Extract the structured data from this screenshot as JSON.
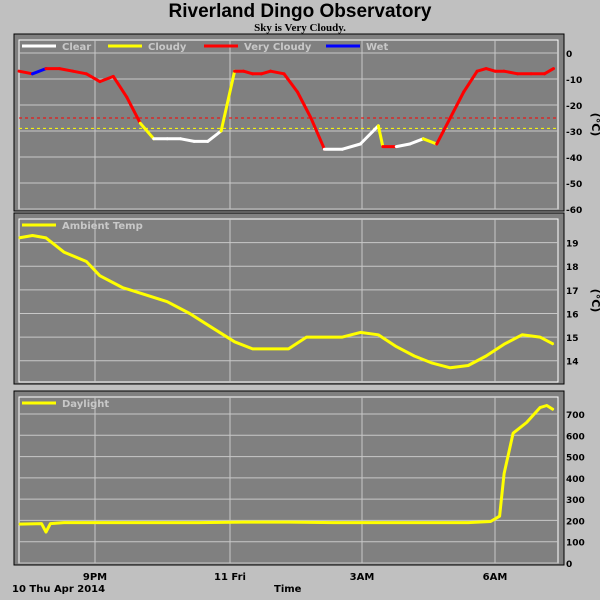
{
  "title": "Riverland Dingo Observatory",
  "subtitle": "Sky is Very Cloudy.",
  "footer": {
    "date_label": "10 Thu Apr 2014",
    "time_label": "Time"
  },
  "x_axis": {
    "ticks": [
      "9PM",
      "11 Fri",
      "3AM",
      "6AM"
    ]
  },
  "colors": {
    "panel_bg": "#808080",
    "frame": "#ffffff",
    "clear": "#ffffff",
    "cloudy": "#ffff00",
    "very_cloudy": "#ff0000",
    "wet": "#0000ff"
  },
  "chart_data": [
    {
      "type": "line",
      "ylabel": "(°C)",
      "ylim": [
        -60,
        0
      ],
      "yticks": [
        "0",
        "-10",
        "-20",
        "-30",
        "-40",
        "-50",
        "-60"
      ],
      "grid": true,
      "legend": [
        "Clear",
        "Cloudy",
        "Very Cloudy",
        "Wet"
      ],
      "thresholds": [
        {
          "value": -25,
          "color": "#ff0000"
        },
        {
          "value": -29,
          "color": "#ffff00"
        }
      ],
      "x_hours": [
        0,
        0.3,
        0.6,
        0.9,
        1.2,
        1.5,
        1.8,
        2.1,
        2.4,
        2.7,
        3.0,
        3.3,
        3.6,
        3.9,
        4.2,
        4.5,
        4.8,
        5.0,
        5.2,
        5.4,
        5.6,
        5.9,
        6.2,
        6.5,
        6.8,
        7.2,
        7.6,
        8.0,
        8.1,
        8.4,
        8.7,
        9.0,
        9.3,
        9.6,
        9.9,
        10.2,
        10.4,
        10.6,
        10.8,
        11.1,
        11.4,
        11.7,
        11.9
      ],
      "values": [
        -7,
        -8,
        -6,
        -6,
        -7,
        -8,
        -11,
        -9,
        -17,
        -27,
        -33,
        -33,
        -33,
        -34,
        -34,
        -30,
        -7,
        -7,
        -8,
        -8,
        -7,
        -8,
        -15,
        -25,
        -37,
        -37,
        -35,
        -28,
        -36,
        -36,
        -35,
        -33,
        -35,
        -25,
        -15,
        -7,
        -6,
        -7,
        -7,
        -8,
        -8,
        -8,
        -6
      ],
      "status_per_segment": [
        "very_cloudy",
        "wet",
        "very_cloudy",
        "very_cloudy",
        "very_cloudy",
        "very_cloudy",
        "very_cloudy",
        "very_cloudy",
        "very_cloudy",
        "cloudy",
        "clear",
        "clear",
        "clear",
        "clear",
        "clear",
        "cloudy",
        "very_cloudy",
        "very_cloudy",
        "very_cloudy",
        "very_cloudy",
        "very_cloudy",
        "very_cloudy",
        "very_cloudy",
        "very_cloudy",
        "clear",
        "clear",
        "clear",
        "cloudy",
        "very_cloudy",
        "clear",
        "clear",
        "cloudy",
        "very_cloudy",
        "very_cloudy",
        "very_cloudy",
        "very_cloudy",
        "very_cloudy",
        "very_cloudy",
        "very_cloudy",
        "very_cloudy",
        "very_cloudy",
        "very_cloudy"
      ]
    },
    {
      "type": "line",
      "legend": [
        "Ambient Temp"
      ],
      "ylabel": "(°C)",
      "ylim": [
        13,
        20
      ],
      "yticks": [
        "19",
        "18",
        "17",
        "16",
        "15",
        "14"
      ],
      "grid": true,
      "series_color": "#ffff00",
      "x_hours": [
        0,
        0.3,
        0.6,
        1.0,
        1.5,
        1.8,
        2.3,
        2.8,
        3.3,
        3.8,
        4.3,
        4.8,
        5.2,
        5.6,
        6.0,
        6.4,
        6.8,
        7.2,
        7.6,
        8.0,
        8.4,
        8.8,
        9.2,
        9.6,
        10.0,
        10.4,
        10.8,
        11.2,
        11.6,
        11.9
      ],
      "values": [
        19.2,
        19.3,
        19.2,
        18.6,
        18.2,
        17.6,
        17.1,
        16.8,
        16.5,
        16.0,
        15.4,
        14.8,
        14.5,
        14.5,
        14.5,
        15.0,
        15.0,
        15.0,
        15.2,
        15.1,
        14.6,
        14.2,
        13.9,
        13.7,
        13.8,
        14.2,
        14.7,
        15.1,
        15.0,
        14.7
      ]
    },
    {
      "type": "line",
      "legend": [
        "Daylight"
      ],
      "ylim": [
        0,
        780
      ],
      "yticks": [
        "700",
        "600",
        "500",
        "400",
        "300",
        "200",
        "100",
        "0"
      ],
      "grid": true,
      "series_color": "#ffff00",
      "x_hours": [
        0,
        0.5,
        0.6,
        0.7,
        1.0,
        2.0,
        3.0,
        4.0,
        5.0,
        6.0,
        7.0,
        8.0,
        9.0,
        10.0,
        10.5,
        10.7,
        10.8,
        11.0,
        11.3,
        11.6,
        11.75,
        11.9
      ],
      "values": [
        183,
        185,
        145,
        185,
        190,
        190,
        190,
        190,
        192,
        192,
        190,
        190,
        190,
        190,
        195,
        220,
        420,
        610,
        660,
        730,
        740,
        720
      ]
    }
  ]
}
